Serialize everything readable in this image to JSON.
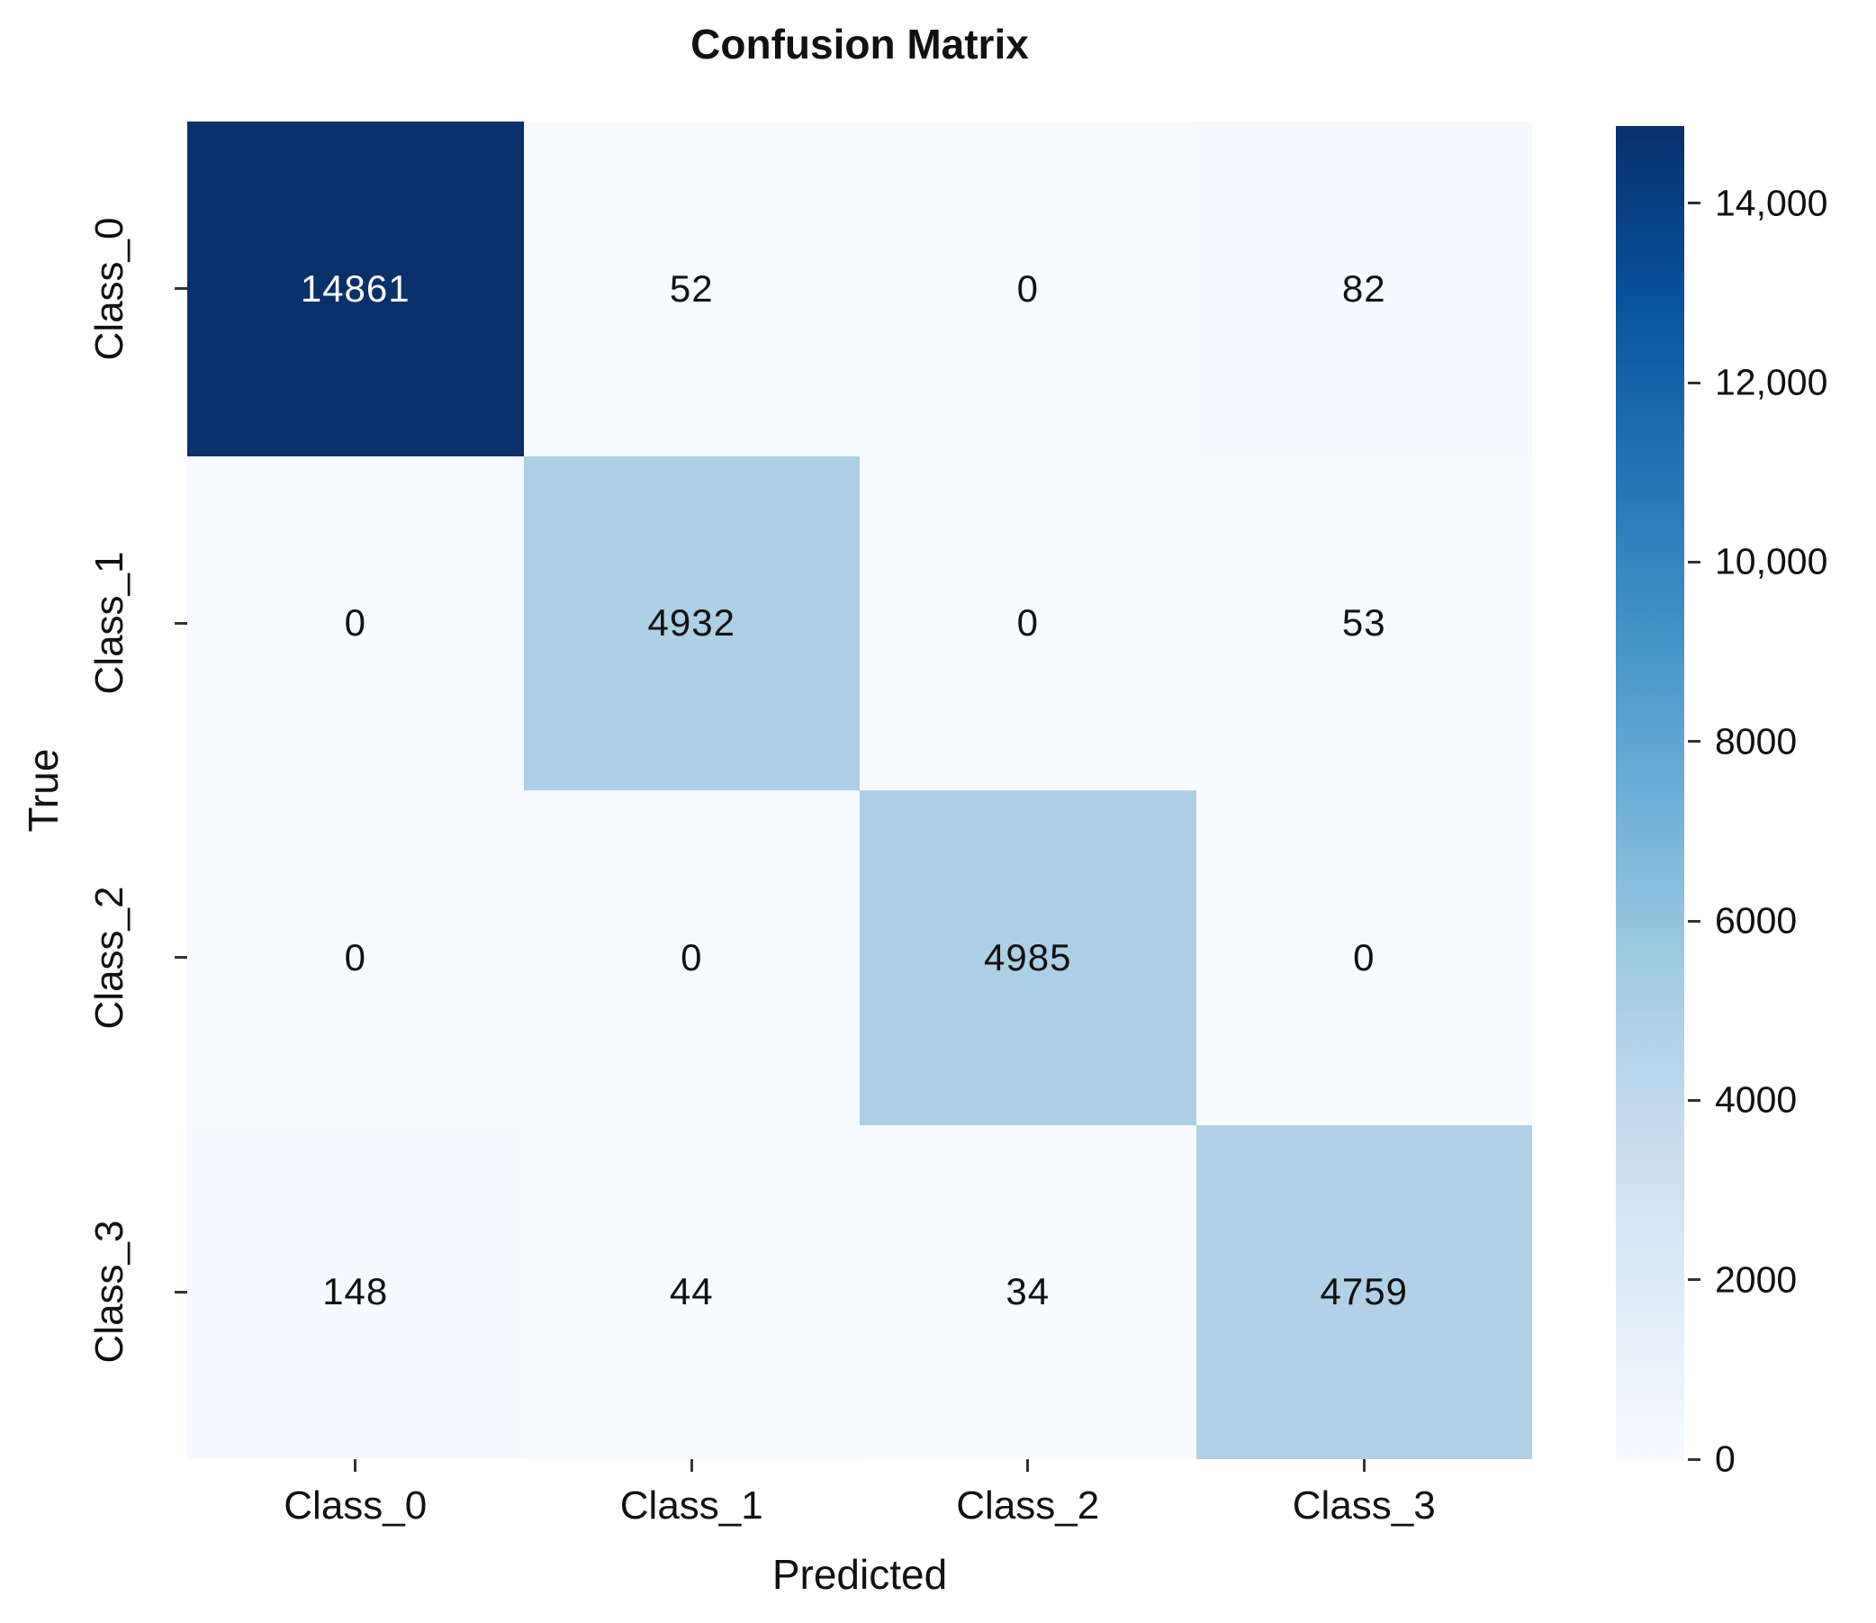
{
  "chart_data": {
    "type": "heatmap",
    "title": "Confusion Matrix",
    "xlabel": "Predicted",
    "ylabel": "True",
    "x_categories": [
      "Class_0",
      "Class_1",
      "Class_2",
      "Class_3"
    ],
    "y_categories": [
      "Class_0",
      "Class_1",
      "Class_2",
      "Class_3"
    ],
    "values": [
      [
        14861,
        52,
        0,
        82
      ],
      [
        0,
        4932,
        0,
        53
      ],
      [
        0,
        0,
        4985,
        0
      ],
      [
        148,
        44,
        34,
        4759
      ]
    ],
    "vmin": 0,
    "vmax": 14861,
    "colormap": "Blues",
    "grid": false,
    "legend_position": "right-colorbar",
    "colorbar_ticks": [
      {
        "value": 0,
        "label": "0"
      },
      {
        "value": 2000,
        "label": "2000"
      },
      {
        "value": 4000,
        "label": "4000"
      },
      {
        "value": 6000,
        "label": "6000"
      },
      {
        "value": 8000,
        "label": "8000"
      },
      {
        "value": 10000,
        "label": "10,000"
      },
      {
        "value": 12000,
        "label": "12,000"
      },
      {
        "value": 14000,
        "label": "14,000"
      }
    ]
  },
  "colors": {
    "cmap_stops": [
      "#f7fbff",
      "#deebf7",
      "#c6dbef",
      "#9ecae1",
      "#6baed6",
      "#4292c6",
      "#2171b5",
      "#08519c",
      "#08306b"
    ],
    "cell_text_dark": "#111111",
    "cell_text_light": "#ffffff",
    "tick_color": "#333333",
    "label_color": "#111111"
  }
}
